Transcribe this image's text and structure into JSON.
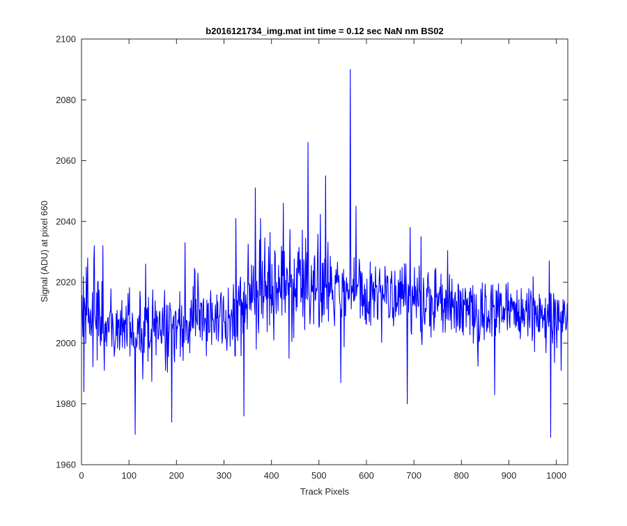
{
  "chart_data": {
    "type": "line",
    "title": "b2016121734_img.mat int time = 0.12 sec  NaN nm BS02",
    "xlabel": "Track Pixels",
    "ylabel": "Signal (ADU) at pixel 660",
    "xlim": [
      0,
      1024
    ],
    "ylim": [
      1960,
      2100
    ],
    "x_ticks": [
      0,
      100,
      200,
      300,
      400,
      500,
      600,
      700,
      800,
      900,
      1000
    ],
    "y_ticks": [
      1960,
      1980,
      2000,
      2020,
      2040,
      2060,
      2080,
      2100
    ],
    "grid": false,
    "legend": "none",
    "x_range_of_series": [
      1,
      1024
    ],
    "series": [
      {
        "color": "#0000ff",
        "trend_points": [
          [
            1,
            2008
          ],
          [
            50,
            2006
          ],
          [
            100,
            2004
          ],
          [
            150,
            2004
          ],
          [
            200,
            2005
          ],
          [
            250,
            2007
          ],
          [
            300,
            2009
          ],
          [
            340,
            2011
          ],
          [
            380,
            2017
          ],
          [
            420,
            2019
          ],
          [
            460,
            2020
          ],
          [
            500,
            2020
          ],
          [
            540,
            2019
          ],
          [
            580,
            2018
          ],
          [
            620,
            2016
          ],
          [
            660,
            2015
          ],
          [
            700,
            2014
          ],
          [
            750,
            2013
          ],
          [
            800,
            2012
          ],
          [
            850,
            2011
          ],
          [
            900,
            2011
          ],
          [
            950,
            2010
          ],
          [
            1000,
            2009
          ],
          [
            1024,
            2009
          ]
        ],
        "noise_amplitude": [
          [
            1,
            6
          ],
          [
            300,
            6
          ],
          [
            350,
            8
          ],
          [
            450,
            8
          ],
          [
            560,
            7
          ],
          [
            700,
            6
          ],
          [
            1024,
            5
          ]
        ],
        "spikes": [
          [
            5,
            1984
          ],
          [
            10,
            2025
          ],
          [
            13,
            2028
          ],
          [
            27,
            2032
          ],
          [
            45,
            2032
          ],
          [
            113,
            1970
          ],
          [
            135,
            2026
          ],
          [
            190,
            1974
          ],
          [
            218,
            2033
          ],
          [
            342,
            1976
          ],
          [
            325,
            2041
          ],
          [
            366,
            2051
          ],
          [
            377,
            2041
          ],
          [
            425,
            2046
          ],
          [
            437,
            1995
          ],
          [
            477,
            2066
          ],
          [
            514,
            2055
          ],
          [
            546,
            1987
          ],
          [
            566,
            2090
          ],
          [
            578,
            2045
          ],
          [
            686,
            1980
          ],
          [
            692,
            2038
          ],
          [
            715,
            2035
          ],
          [
            870,
            1983
          ],
          [
            985,
            2027
          ],
          [
            988,
            1969
          ],
          [
            1010,
            1991
          ]
        ]
      }
    ]
  }
}
